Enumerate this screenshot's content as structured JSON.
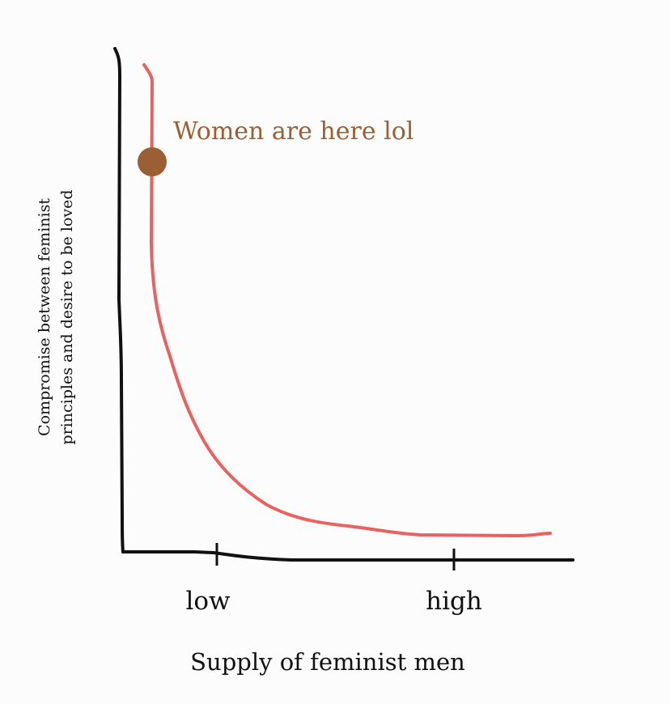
{
  "chart_data": {
    "type": "line",
    "xlabel": "Supply of feminist men",
    "ylabel_lines": [
      "Compromise between feminist",
      "principles and desire to be loved"
    ],
    "x_ticks": [
      "low",
      "high"
    ],
    "grid": false,
    "legend": "none",
    "series": [
      {
        "values": [],
        "color": "#e8625f"
      }
    ],
    "annotation": {
      "text": "Women are here lol",
      "color": "#9a5f33",
      "marker_color": "#9a5f33"
    },
    "axis_color": "#111111"
  }
}
